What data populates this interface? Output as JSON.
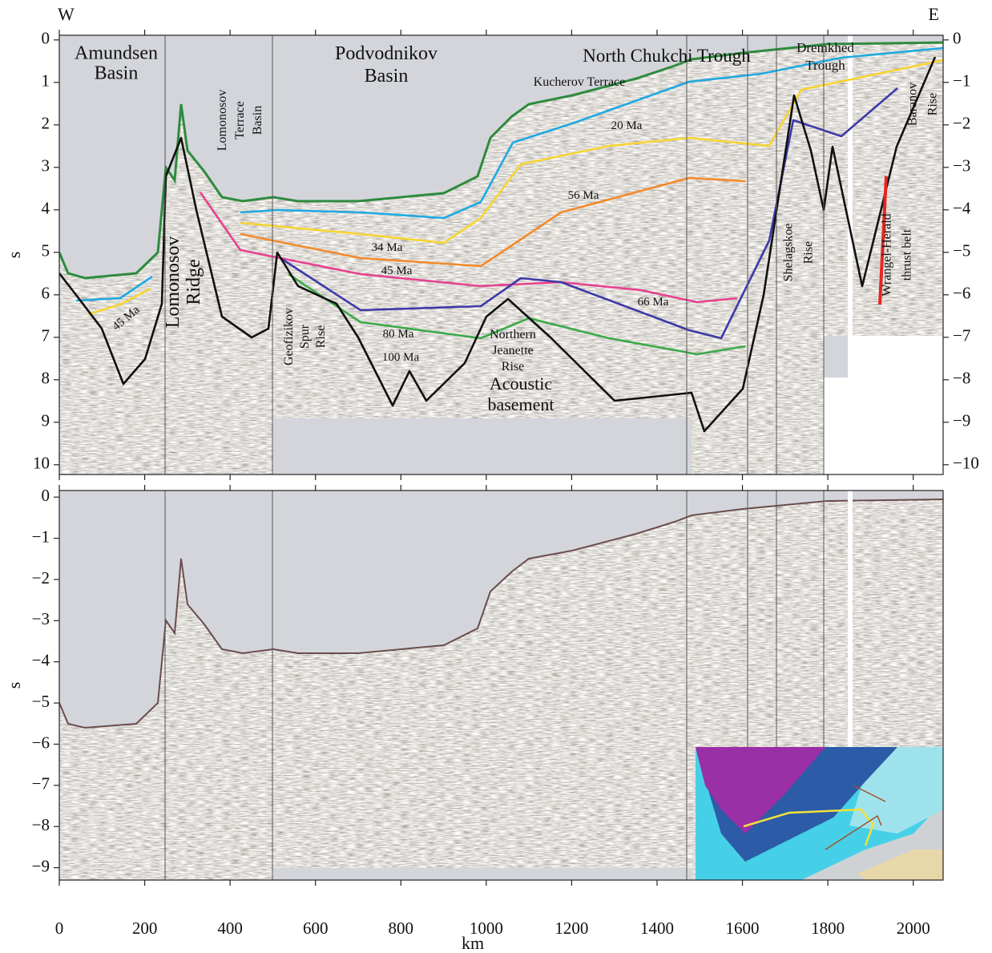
{
  "chart_data": [
    {
      "type": "seismic-section",
      "corner_labels": [
        "W",
        "E"
      ],
      "ylabel": "s",
      "xlim": [
        0,
        2070
      ],
      "ylim": [
        10.23,
        -0.11
      ],
      "yticks": [
        0,
        1,
        2,
        3,
        4,
        5,
        6,
        7,
        8,
        9,
        10
      ],
      "y2lim": [
        -10.23,
        0.11
      ],
      "y2ticks": [
        0,
        {
          "value": -1,
          "label": "−1"
        },
        {
          "value": -2,
          "label": "−2"
        },
        {
          "value": -3,
          "label": "−3"
        },
        {
          "value": -4,
          "label": "−4"
        },
        {
          "value": -5,
          "label": "−5"
        },
        {
          "value": -6,
          "label": "−6"
        },
        {
          "value": -7,
          "label": "−7"
        },
        {
          "value": -8,
          "label": "−8"
        },
        {
          "value": -9,
          "label": "−9"
        },
        {
          "value": -10,
          "label": "−10"
        }
      ],
      "annotations": [
        [
          "Amundsen",
          "Basin"
        ],
        [
          "Podvodnikov",
          "Basin"
        ],
        [
          "North Chukchi Trough"
        ],
        [
          "Kucherov Terrace"
        ],
        [
          "Dremkhed",
          "Trough"
        ],
        [
          "Lomonosov",
          "Ridge"
        ],
        [
          "Lomonosov",
          "Terrace",
          "Basin"
        ],
        [
          "Geofizikov",
          "Spur",
          "Rise"
        ],
        [
          "Northern",
          "Jeanette",
          "Rise"
        ],
        [
          "Acoustic",
          "basement"
        ],
        [
          "Shelagskoe",
          "Rise"
        ],
        [
          "Wrangel-Herald",
          "thrust belt"
        ],
        [
          "Baranov",
          "Rise"
        ],
        [
          "20 Ma"
        ],
        [
          "56 Ma"
        ],
        [
          "34 Ma"
        ],
        [
          "45 Ma"
        ],
        [
          "66 Ma"
        ],
        [
          "80 Ma"
        ],
        [
          "100 Ma"
        ],
        [
          "45 Ma"
        ]
      ]
    },
    {
      "type": "seismic-section",
      "ylabel": "s",
      "xlabel": "km",
      "xlim": [
        0,
        2070
      ],
      "xticks": [
        0,
        200,
        400,
        600,
        800,
        1000,
        1200,
        1400,
        1600,
        1800,
        2000
      ],
      "ylim": [
        -9.3,
        0.16
      ],
      "yticks": [
        0,
        {
          "value": -1,
          "label": "−1"
        },
        {
          "value": -2,
          "label": "−2"
        },
        {
          "value": -3,
          "label": "−3"
        },
        {
          "value": -4,
          "label": "−4"
        },
        {
          "value": -5,
          "label": "−5"
        },
        {
          "value": -6,
          "label": "−6"
        },
        {
          "value": -7,
          "label": "−7"
        },
        {
          "value": -8,
          "label": "−8"
        },
        {
          "value": -9,
          "label": "−9"
        }
      ]
    }
  ]
}
